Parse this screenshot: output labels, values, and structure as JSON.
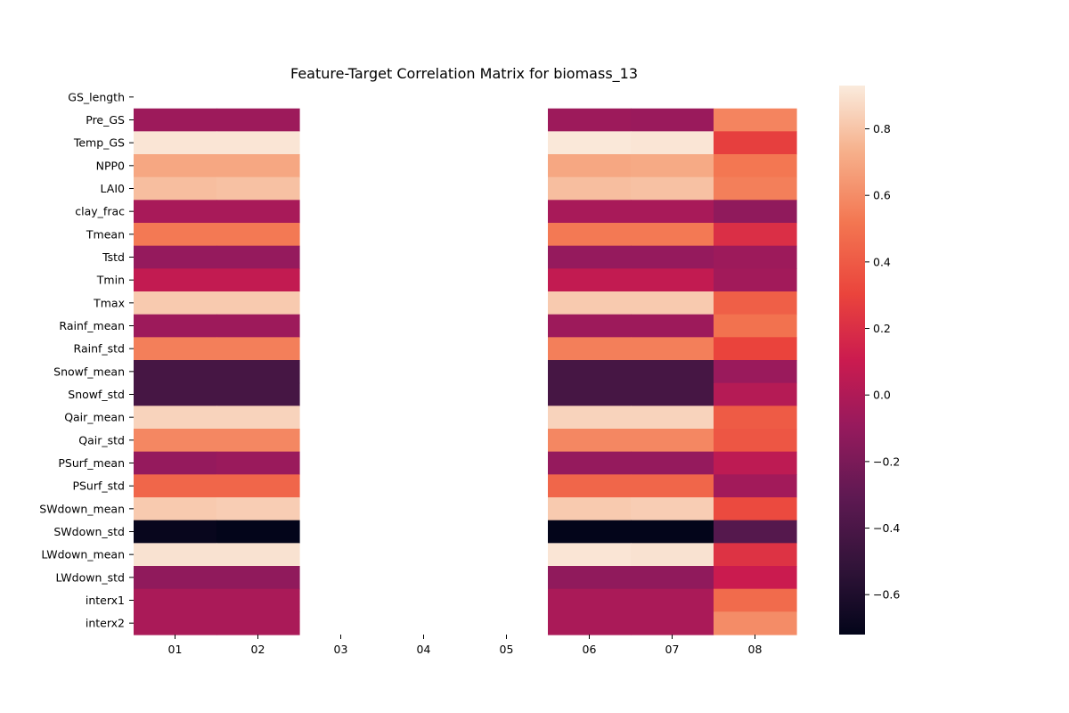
{
  "chart_data": {
    "type": "heatmap",
    "title": "Feature-Target Correlation Matrix for biomass_13",
    "xlabel": "",
    "ylabel": "",
    "x_categories": [
      "01",
      "02",
      "03",
      "04",
      "05",
      "06",
      "07",
      "08"
    ],
    "y_categories": [
      "GS_length",
      "Pre_GS",
      "Temp_GS",
      "NPP0",
      "LAI0",
      "clay_frac",
      "Tmean",
      "Tstd",
      "Tmin",
      "Tmax",
      "Rainf_mean",
      "Rainf_std",
      "Snowf_mean",
      "Snowf_std",
      "Qair_mean",
      "Qair_std",
      "PSurf_mean",
      "PSurf_std",
      "SWdown_mean",
      "SWdown_std",
      "LWdown_mean",
      "LWdown_std",
      "interx1",
      "interx2"
    ],
    "values": [
      [
        null,
        null,
        null,
        null,
        null,
        null,
        null,
        null
      ],
      [
        -0.07,
        -0.07,
        null,
        null,
        null,
        -0.07,
        -0.08,
        0.57
      ],
      [
        0.91,
        0.91,
        null,
        null,
        null,
        0.92,
        0.91,
        0.28
      ],
      [
        0.7,
        0.7,
        null,
        null,
        null,
        0.7,
        0.71,
        0.52
      ],
      [
        0.78,
        0.79,
        null,
        null,
        null,
        0.78,
        0.79,
        0.55
      ],
      [
        -0.03,
        -0.03,
        null,
        null,
        null,
        -0.03,
        -0.03,
        -0.12
      ],
      [
        0.53,
        0.53,
        null,
        null,
        null,
        0.53,
        0.53,
        0.2
      ],
      [
        -0.1,
        -0.1,
        null,
        null,
        null,
        -0.1,
        -0.1,
        -0.07
      ],
      [
        0.07,
        0.07,
        null,
        null,
        null,
        0.07,
        0.07,
        -0.05
      ],
      [
        0.82,
        0.82,
        null,
        null,
        null,
        0.82,
        0.82,
        0.42
      ],
      [
        -0.07,
        -0.07,
        null,
        null,
        null,
        -0.07,
        -0.07,
        0.5
      ],
      [
        0.55,
        0.55,
        null,
        null,
        null,
        0.55,
        0.55,
        0.3
      ],
      [
        -0.42,
        -0.42,
        null,
        null,
        null,
        -0.42,
        -0.42,
        -0.08
      ],
      [
        -0.42,
        -0.42,
        null,
        null,
        null,
        -0.42,
        -0.42,
        0.02
      ],
      [
        0.85,
        0.85,
        null,
        null,
        null,
        0.85,
        0.85,
        0.4
      ],
      [
        0.58,
        0.58,
        null,
        null,
        null,
        0.58,
        0.58,
        0.38
      ],
      [
        -0.1,
        -0.08,
        null,
        null,
        null,
        -0.1,
        -0.1,
        0.05
      ],
      [
        0.45,
        0.45,
        null,
        null,
        null,
        0.45,
        0.45,
        -0.05
      ],
      [
        0.82,
        0.83,
        null,
        null,
        null,
        0.82,
        0.83,
        0.33
      ],
      [
        -0.7,
        -0.72,
        null,
        null,
        null,
        -0.72,
        -0.72,
        -0.35
      ],
      [
        0.9,
        0.9,
        null,
        null,
        null,
        0.91,
        0.9,
        0.22
      ],
      [
        -0.12,
        -0.12,
        null,
        null,
        null,
        -0.12,
        -0.12,
        0.1
      ],
      [
        -0.02,
        -0.02,
        null,
        null,
        null,
        -0.02,
        -0.02,
        0.47
      ],
      [
        -0.02,
        -0.02,
        null,
        null,
        null,
        -0.02,
        -0.02,
        0.6
      ]
    ],
    "colormap": "rocket",
    "vmin": -0.72,
    "vmax": 0.93,
    "colorbar_ticks": [
      -0.6,
      -0.4,
      -0.2,
      0.0,
      0.2,
      0.4,
      0.6,
      0.8
    ],
    "colorbar_tick_labels": [
      "−0.6",
      "−0.4",
      "−0.2",
      "0.0",
      "0.2",
      "0.4",
      "0.6",
      "0.8"
    ],
    "grid": false,
    "legend": "colorbar-right"
  }
}
